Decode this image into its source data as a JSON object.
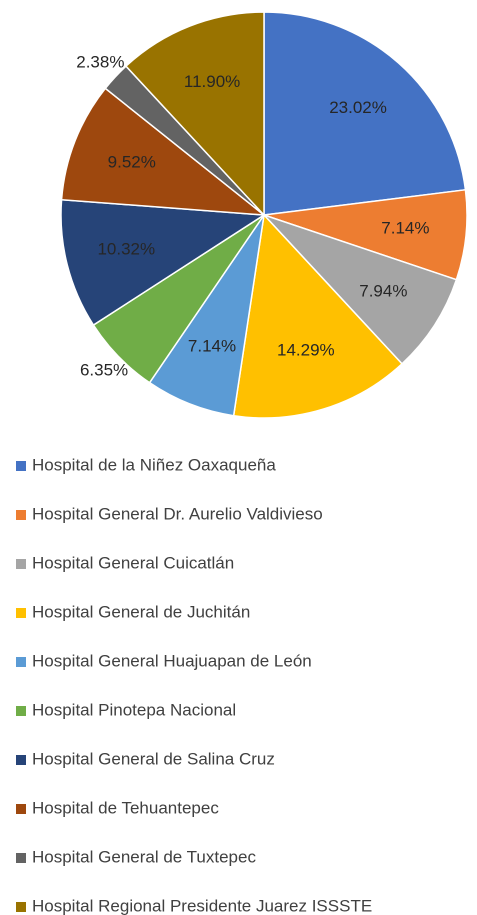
{
  "chart_data": {
    "type": "pie",
    "categories": [
      "Hospital de la Niñez Oaxaqueña",
      "Hospital General Dr. Aurelio Valdivieso",
      "Hospital General Cuicatlán",
      "Hospital General de Juchitán",
      "Hospital General Huajuapan de León",
      "Hospital Pinotepa Nacional",
      "Hospital General de Salina Cruz",
      "Hospital de Tehuantepec",
      "Hospital General de Tuxtepec",
      "Hospital Regional Presidente Juarez ISSSTE"
    ],
    "values": [
      23.02,
      7.14,
      7.94,
      14.29,
      7.14,
      6.35,
      10.32,
      9.52,
      2.38,
      11.9
    ],
    "value_labels": [
      "23.02%",
      "7.14%",
      "7.94%",
      "14.29%",
      "7.14%",
      "6.35%",
      "10.32%",
      "9.52%",
      "2.38%",
      "11.90%"
    ],
    "colors": [
      "#4472c4",
      "#ed7d31",
      "#a5a5a5",
      "#ffc000",
      "#5b9bd5",
      "#70ad47",
      "#264478",
      "#9e480e",
      "#636363",
      "#997300"
    ],
    "legend": "bottom"
  }
}
